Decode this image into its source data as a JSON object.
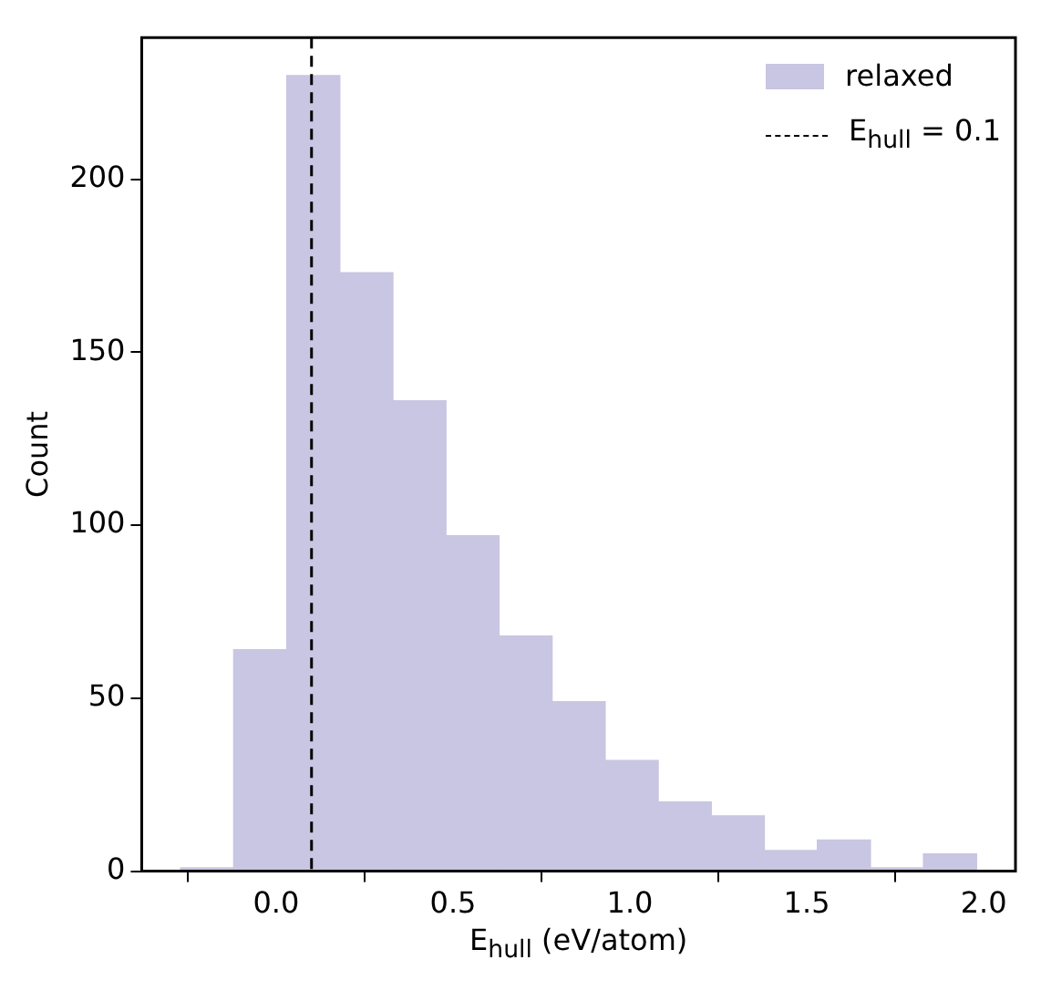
{
  "chart_data": {
    "type": "histogram",
    "xlabel": "E$_{hull}$ (eV/atom)",
    "ylabel": "Count",
    "bins": [
      -0.27,
      -0.12,
      0.03,
      0.18,
      0.33,
      0.48,
      0.63,
      0.78,
      0.93,
      1.08,
      1.23,
      1.38,
      1.53,
      1.68,
      1.83,
      1.98
    ],
    "series": [
      {
        "name": "relaxed",
        "color": "#c8c6e2",
        "values": [
          1,
          64,
          230,
          173,
          136,
          97,
          68,
          49,
          32,
          20,
          16,
          6,
          9,
          1,
          5
        ]
      }
    ],
    "xlim": [
      -0.38,
      2.09
    ],
    "xticks": [
      {
        "value": 0,
        "label": "0.0"
      },
      {
        "value": 0.5,
        "label": "0.5"
      },
      {
        "value": 1,
        "label": "1.0"
      },
      {
        "value": 1.5,
        "label": "1.5"
      },
      {
        "value": 2,
        "label": "2.0"
      }
    ],
    "ylim": [
      0,
      241
    ],
    "yticks": [
      0,
      50,
      100,
      150,
      200
    ],
    "ref_lines": [
      {
        "axis": "x",
        "value": 0.1,
        "label": "E$_{hull}$ = 0.1",
        "color": "#000000",
        "line_style": "dashed"
      }
    ],
    "legend": "top right",
    "grid": false
  }
}
